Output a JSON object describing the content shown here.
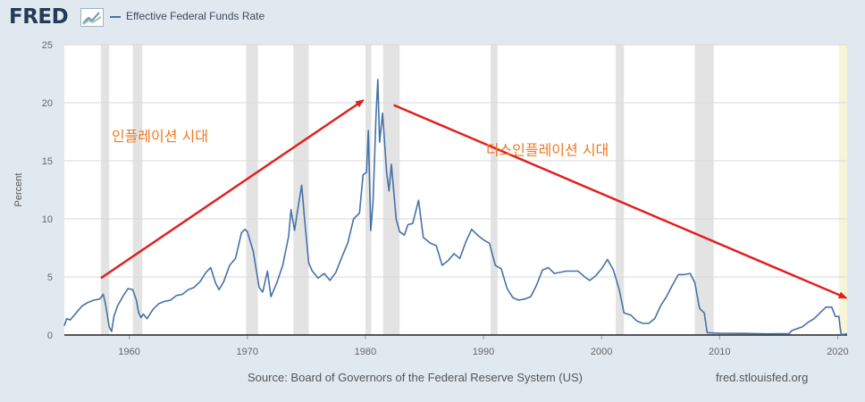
{
  "header": {
    "logo_text": "FRED",
    "logo_icon": "line-chart-icon",
    "legend_label": "Effective Federal Funds Rate"
  },
  "footer": {
    "source": "Source: Board of Governors of the Federal Reserve System (US)",
    "site": "fred.stlouisfed.org"
  },
  "chart_data": {
    "type": "line",
    "title": "",
    "xlabel": "",
    "ylabel": "Percent",
    "xlim": [
      1954.5,
      2020.8
    ],
    "ylim": [
      0,
      25
    ],
    "x_ticks": [
      "1960",
      "1970",
      "1980",
      "1990",
      "2000",
      "2010",
      "2020"
    ],
    "y_ticks": [
      "0",
      "5",
      "10",
      "15",
      "20",
      "25"
    ],
    "grid": "horizontal",
    "recessions": [
      [
        1957.6,
        1958.3
      ],
      [
        1960.3,
        1961.1
      ],
      [
        1969.9,
        1970.9
      ],
      [
        1973.9,
        1975.2
      ],
      [
        1980.0,
        1980.5
      ],
      [
        1981.5,
        1982.9
      ],
      [
        1990.6,
        1991.2
      ],
      [
        2001.2,
        2001.9
      ],
      [
        2007.9,
        2009.5
      ],
      [
        2020.1,
        2020.8
      ]
    ],
    "series": [
      {
        "name": "Effective Federal Funds Rate",
        "color": "#4572a7",
        "points": [
          [
            1954.5,
            0.8
          ],
          [
            1954.7,
            1.4
          ],
          [
            1955.0,
            1.3
          ],
          [
            1955.5,
            1.9
          ],
          [
            1956.0,
            2.5
          ],
          [
            1956.5,
            2.8
          ],
          [
            1957.0,
            3.0
          ],
          [
            1957.5,
            3.1
          ],
          [
            1957.8,
            3.5
          ],
          [
            1958.0,
            2.6
          ],
          [
            1958.3,
            0.7
          ],
          [
            1958.5,
            0.3
          ],
          [
            1958.7,
            1.6
          ],
          [
            1959.0,
            2.5
          ],
          [
            1959.5,
            3.4
          ],
          [
            1959.9,
            4.0
          ],
          [
            1960.3,
            3.9
          ],
          [
            1960.6,
            3.0
          ],
          [
            1960.8,
            1.9
          ],
          [
            1961.0,
            1.5
          ],
          [
            1961.2,
            1.8
          ],
          [
            1961.5,
            1.4
          ],
          [
            1962.0,
            2.2
          ],
          [
            1962.5,
            2.7
          ],
          [
            1963.0,
            2.9
          ],
          [
            1963.5,
            3.0
          ],
          [
            1964.0,
            3.4
          ],
          [
            1964.5,
            3.5
          ],
          [
            1965.0,
            3.9
          ],
          [
            1965.5,
            4.1
          ],
          [
            1966.0,
            4.6
          ],
          [
            1966.5,
            5.4
          ],
          [
            1966.9,
            5.8
          ],
          [
            1967.3,
            4.5
          ],
          [
            1967.6,
            3.9
          ],
          [
            1968.0,
            4.6
          ],
          [
            1968.5,
            6.0
          ],
          [
            1969.0,
            6.6
          ],
          [
            1969.5,
            8.8
          ],
          [
            1969.8,
            9.1
          ],
          [
            1970.0,
            8.9
          ],
          [
            1970.5,
            7.2
          ],
          [
            1971.0,
            4.1
          ],
          [
            1971.3,
            3.7
          ],
          [
            1971.7,
            5.5
          ],
          [
            1972.0,
            3.3
          ],
          [
            1972.5,
            4.5
          ],
          [
            1973.0,
            6.0
          ],
          [
            1973.5,
            8.5
          ],
          [
            1973.7,
            10.8
          ],
          [
            1974.0,
            9.0
          ],
          [
            1974.3,
            11.0
          ],
          [
            1974.6,
            12.9
          ],
          [
            1974.9,
            9.4
          ],
          [
            1975.2,
            6.2
          ],
          [
            1975.5,
            5.5
          ],
          [
            1976.0,
            4.9
          ],
          [
            1976.5,
            5.3
          ],
          [
            1977.0,
            4.7
          ],
          [
            1977.5,
            5.4
          ],
          [
            1978.0,
            6.7
          ],
          [
            1978.5,
            7.9
          ],
          [
            1979.0,
            10.0
          ],
          [
            1979.5,
            10.5
          ],
          [
            1979.8,
            13.8
          ],
          [
            1980.1,
            14.0
          ],
          [
            1980.25,
            17.6
          ],
          [
            1980.45,
            9.0
          ],
          [
            1980.65,
            11.5
          ],
          [
            1980.9,
            18.9
          ],
          [
            1981.05,
            22.0
          ],
          [
            1981.2,
            16.6
          ],
          [
            1981.45,
            19.1
          ],
          [
            1981.8,
            14.0
          ],
          [
            1982.0,
            12.4
          ],
          [
            1982.2,
            14.7
          ],
          [
            1982.6,
            10.0
          ],
          [
            1982.9,
            8.9
          ],
          [
            1983.3,
            8.6
          ],
          [
            1983.6,
            9.5
          ],
          [
            1984.0,
            9.6
          ],
          [
            1984.5,
            11.6
          ],
          [
            1984.9,
            8.4
          ],
          [
            1985.5,
            7.9
          ],
          [
            1986.0,
            7.7
          ],
          [
            1986.5,
            6.0
          ],
          [
            1987.0,
            6.4
          ],
          [
            1987.5,
            7.0
          ],
          [
            1988.0,
            6.6
          ],
          [
            1988.5,
            8.0
          ],
          [
            1989.0,
            9.1
          ],
          [
            1989.5,
            8.6
          ],
          [
            1990.0,
            8.2
          ],
          [
            1990.5,
            7.9
          ],
          [
            1991.0,
            6.0
          ],
          [
            1991.5,
            5.7
          ],
          [
            1992.0,
            4.0
          ],
          [
            1992.5,
            3.2
          ],
          [
            1993.0,
            3.0
          ],
          [
            1993.5,
            3.1
          ],
          [
            1994.0,
            3.3
          ],
          [
            1994.5,
            4.3
          ],
          [
            1995.0,
            5.6
          ],
          [
            1995.5,
            5.8
          ],
          [
            1996.0,
            5.3
          ],
          [
            1997.0,
            5.5
          ],
          [
            1998.0,
            5.5
          ],
          [
            1998.7,
            4.9
          ],
          [
            1999.0,
            4.7
          ],
          [
            1999.5,
            5.1
          ],
          [
            2000.0,
            5.7
          ],
          [
            2000.5,
            6.5
          ],
          [
            2001.0,
            5.6
          ],
          [
            2001.5,
            3.9
          ],
          [
            2001.9,
            1.9
          ],
          [
            2002.5,
            1.7
          ],
          [
            2003.0,
            1.2
          ],
          [
            2003.5,
            1.0
          ],
          [
            2004.0,
            1.0
          ],
          [
            2004.5,
            1.4
          ],
          [
            2005.0,
            2.5
          ],
          [
            2005.5,
            3.3
          ],
          [
            2006.0,
            4.3
          ],
          [
            2006.5,
            5.2
          ],
          [
            2007.0,
            5.2
          ],
          [
            2007.5,
            5.3
          ],
          [
            2007.9,
            4.5
          ],
          [
            2008.3,
            2.3
          ],
          [
            2008.7,
            1.9
          ],
          [
            2008.95,
            0.2
          ],
          [
            2010.0,
            0.15
          ],
          [
            2012.0,
            0.14
          ],
          [
            2014.0,
            0.1
          ],
          [
            2015.9,
            0.12
          ],
          [
            2016.1,
            0.38
          ],
          [
            2017.0,
            0.7
          ],
          [
            2017.5,
            1.1
          ],
          [
            2018.0,
            1.4
          ],
          [
            2018.5,
            1.9
          ],
          [
            2019.0,
            2.4
          ],
          [
            2019.5,
            2.4
          ],
          [
            2019.8,
            1.6
          ],
          [
            2020.1,
            1.6
          ],
          [
            2020.2,
            0.7
          ],
          [
            2020.3,
            0.05
          ],
          [
            2020.8,
            0.09
          ]
        ]
      }
    ],
    "annotations": [
      {
        "text": "인플레이션 시대",
        "color": "#f07820",
        "x": 1958.5,
        "y": 16.7
      },
      {
        "text": "디스인플레이션 시대",
        "color": "#f07820",
        "x": 1990.2,
        "y": 15.5
      }
    ],
    "arrows": [
      {
        "color": "#e02020",
        "from": [
          1957.6,
          4.9
        ],
        "to": [
          1979.8,
          20.2
        ]
      },
      {
        "color": "#e02020",
        "from": [
          1982.4,
          19.8
        ],
        "to": [
          2020.7,
          3.2
        ]
      }
    ]
  }
}
